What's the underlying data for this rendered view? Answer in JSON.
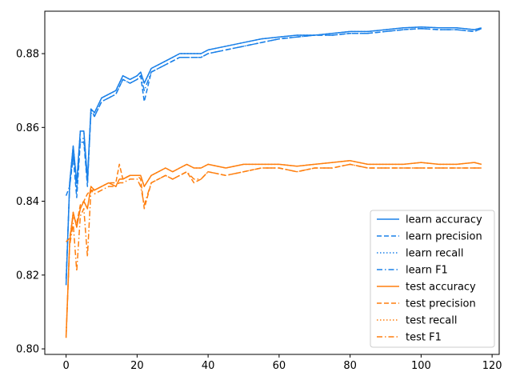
{
  "chart_data": {
    "type": "line",
    "title": "",
    "xlabel": "",
    "ylabel": "",
    "xlim": [
      -6,
      122
    ],
    "ylim": [
      0.7985,
      0.8915
    ],
    "xticks": [
      0,
      20,
      40,
      60,
      80,
      100,
      120
    ],
    "xtick_labels": [
      "0",
      "20",
      "40",
      "60",
      "80",
      "100",
      "120"
    ],
    "yticks": [
      0.8,
      0.82,
      0.84,
      0.86,
      0.88
    ],
    "ytick_labels": [
      "0.80",
      "0.82",
      "0.84",
      "0.86",
      "0.88"
    ],
    "legend_position": "lower-right",
    "colors": {
      "learn": "#1f77b4",
      "test": "#ff7f0e",
      "learn_render": "#1a80e8",
      "test_render": "#ff7f0e"
    },
    "series": [
      {
        "name": "learn accuracy",
        "group": "learn",
        "style": "solid",
        "x": [
          0,
          1,
          2,
          3,
          4,
          5,
          6,
          7,
          8,
          10,
          12,
          14,
          15,
          16,
          18,
          20,
          21,
          22,
          24,
          26,
          28,
          30,
          32,
          34,
          36,
          38,
          40,
          45,
          50,
          55,
          60,
          65,
          70,
          75,
          80,
          85,
          90,
          95,
          100,
          105,
          110,
          115,
          117
        ],
        "y": [
          0.8173,
          0.845,
          0.855,
          0.845,
          0.859,
          0.859,
          0.846,
          0.865,
          0.864,
          0.868,
          0.869,
          0.87,
          0.872,
          0.874,
          0.873,
          0.874,
          0.875,
          0.872,
          0.876,
          0.877,
          0.878,
          0.879,
          0.88,
          0.88,
          0.88,
          0.88,
          0.881,
          0.882,
          0.883,
          0.884,
          0.8845,
          0.885,
          0.885,
          0.8855,
          0.886,
          0.886,
          0.8865,
          0.887,
          0.8872,
          0.887,
          0.887,
          0.8865,
          0.887
        ]
      },
      {
        "name": "learn precision",
        "group": "learn",
        "style": "dashed",
        "x": [
          0,
          1,
          2,
          3,
          4,
          5,
          6,
          7,
          8,
          10,
          12,
          14,
          15,
          16,
          18,
          20,
          21,
          22,
          24,
          26,
          28,
          30,
          32,
          34,
          36,
          38,
          40,
          45,
          50,
          55,
          60,
          65,
          70,
          75,
          80,
          85,
          90,
          95,
          100,
          105,
          110,
          115,
          117
        ],
        "y": [
          0.8415,
          0.844,
          0.852,
          0.841,
          0.856,
          0.856,
          0.844,
          0.865,
          0.863,
          0.867,
          0.868,
          0.869,
          0.871,
          0.873,
          0.872,
          0.873,
          0.874,
          0.867,
          0.875,
          0.876,
          0.877,
          0.878,
          0.879,
          0.879,
          0.879,
          0.879,
          0.88,
          0.881,
          0.882,
          0.883,
          0.884,
          0.8845,
          0.885,
          0.885,
          0.8855,
          0.8855,
          0.886,
          0.8865,
          0.8868,
          0.8865,
          0.8865,
          0.886,
          0.8868
        ]
      },
      {
        "name": "learn recall",
        "group": "learn",
        "style": "dotted",
        "x": [
          0,
          1,
          2,
          3,
          4,
          5,
          6,
          7,
          8,
          10,
          12,
          14,
          15,
          16,
          18,
          20,
          21,
          22,
          24,
          26,
          28,
          30,
          32,
          34,
          36,
          38,
          40,
          45,
          50,
          55,
          60,
          65,
          70,
          75,
          80,
          85,
          90,
          95,
          100,
          105,
          110,
          115,
          117
        ],
        "y": [
          0.8173,
          0.845,
          0.855,
          0.845,
          0.859,
          0.859,
          0.846,
          0.865,
          0.864,
          0.868,
          0.869,
          0.87,
          0.872,
          0.874,
          0.873,
          0.874,
          0.875,
          0.872,
          0.876,
          0.877,
          0.878,
          0.879,
          0.88,
          0.88,
          0.88,
          0.88,
          0.881,
          0.882,
          0.883,
          0.884,
          0.8845,
          0.885,
          0.885,
          0.8855,
          0.886,
          0.886,
          0.8865,
          0.887,
          0.8872,
          0.887,
          0.887,
          0.8865,
          0.887
        ]
      },
      {
        "name": "learn F1",
        "group": "learn",
        "style": "dashdot",
        "x": [
          0,
          1,
          2,
          3,
          4,
          5,
          6,
          7,
          8,
          10,
          12,
          14,
          15,
          16,
          18,
          20,
          21,
          22,
          24,
          26,
          28,
          30,
          32,
          34,
          36,
          38,
          40,
          45,
          50,
          55,
          60,
          65,
          70,
          75,
          80,
          85,
          90,
          95,
          100,
          105,
          110,
          115,
          117
        ],
        "y": [
          0.819,
          0.844,
          0.853,
          0.843,
          0.857,
          0.857,
          0.845,
          0.864,
          0.863,
          0.867,
          0.868,
          0.869,
          0.871,
          0.873,
          0.872,
          0.873,
          0.874,
          0.87,
          0.875,
          0.876,
          0.877,
          0.878,
          0.879,
          0.879,
          0.879,
          0.879,
          0.88,
          0.881,
          0.882,
          0.883,
          0.884,
          0.8845,
          0.885,
          0.885,
          0.8855,
          0.8855,
          0.886,
          0.8865,
          0.8868,
          0.8865,
          0.8865,
          0.886,
          0.8868
        ]
      },
      {
        "name": "test accuracy",
        "group": "test",
        "style": "solid",
        "x": [
          0,
          1,
          2,
          3,
          4,
          5,
          6,
          7,
          8,
          10,
          12,
          14,
          15,
          16,
          18,
          20,
          21,
          22,
          24,
          26,
          28,
          30,
          32,
          34,
          36,
          38,
          40,
          45,
          50,
          55,
          60,
          65,
          70,
          75,
          80,
          85,
          90,
          95,
          100,
          105,
          110,
          115,
          117
        ],
        "y": [
          0.803,
          0.829,
          0.837,
          0.833,
          0.838,
          0.84,
          0.838,
          0.844,
          0.843,
          0.844,
          0.845,
          0.844,
          0.846,
          0.846,
          0.847,
          0.847,
          0.847,
          0.844,
          0.847,
          0.848,
          0.849,
          0.848,
          0.849,
          0.85,
          0.849,
          0.849,
          0.85,
          0.849,
          0.85,
          0.85,
          0.85,
          0.8495,
          0.85,
          0.8505,
          0.851,
          0.85,
          0.85,
          0.85,
          0.8505,
          0.85,
          0.85,
          0.8505,
          0.85
        ]
      },
      {
        "name": "test precision",
        "group": "test",
        "style": "dashed",
        "x": [
          0,
          1,
          2,
          3,
          4,
          5,
          6,
          7,
          8,
          10,
          12,
          14,
          15,
          16,
          18,
          20,
          21,
          22,
          24,
          26,
          28,
          30,
          32,
          34,
          36,
          38,
          40,
          45,
          50,
          55,
          60,
          65,
          70,
          75,
          80,
          85,
          90,
          95,
          100,
          105,
          110,
          115,
          117
        ],
        "y": [
          0.829,
          0.83,
          0.836,
          0.834,
          0.839,
          0.84,
          0.842,
          0.843,
          0.843,
          0.844,
          0.845,
          0.845,
          0.85,
          0.846,
          0.847,
          0.847,
          0.846,
          0.838,
          0.845,
          0.846,
          0.847,
          0.846,
          0.847,
          0.848,
          0.845,
          0.846,
          0.848,
          0.847,
          0.848,
          0.849,
          0.849,
          0.848,
          0.849,
          0.849,
          0.85,
          0.849,
          0.849,
          0.849,
          0.849,
          0.849,
          0.849,
          0.849,
          0.849
        ]
      },
      {
        "name": "test recall",
        "group": "test",
        "style": "dotted",
        "x": [
          0,
          1,
          2,
          3,
          4,
          5,
          6,
          7,
          8,
          10,
          12,
          14,
          15,
          16,
          18,
          20,
          21,
          22,
          24,
          26,
          28,
          30,
          32,
          34,
          36,
          38,
          40,
          45,
          50,
          55,
          60,
          65,
          70,
          75,
          80,
          85,
          90,
          95,
          100,
          105,
          110,
          115,
          117
        ],
        "y": [
          0.803,
          0.829,
          0.837,
          0.833,
          0.838,
          0.84,
          0.838,
          0.844,
          0.843,
          0.844,
          0.845,
          0.844,
          0.846,
          0.846,
          0.847,
          0.847,
          0.847,
          0.844,
          0.847,
          0.848,
          0.849,
          0.848,
          0.849,
          0.85,
          0.849,
          0.849,
          0.85,
          0.849,
          0.85,
          0.85,
          0.85,
          0.8495,
          0.85,
          0.8505,
          0.851,
          0.85,
          0.85,
          0.85,
          0.8505,
          0.85,
          0.85,
          0.8505,
          0.85
        ]
      },
      {
        "name": "test F1",
        "group": "test",
        "style": "dashdot",
        "x": [
          0,
          1,
          2,
          3,
          4,
          5,
          6,
          7,
          8,
          10,
          12,
          14,
          15,
          16,
          18,
          20,
          21,
          22,
          24,
          26,
          28,
          30,
          32,
          34,
          36,
          38,
          40,
          45,
          50,
          55,
          60,
          65,
          70,
          75,
          80,
          85,
          90,
          95,
          100,
          105,
          110,
          115,
          117
        ],
        "y": [
          0.8035,
          0.828,
          0.834,
          0.821,
          0.836,
          0.838,
          0.825,
          0.843,
          0.842,
          0.843,
          0.844,
          0.844,
          0.845,
          0.845,
          0.846,
          0.846,
          0.844,
          0.839,
          0.845,
          0.846,
          0.847,
          0.846,
          0.847,
          0.848,
          0.846,
          0.846,
          0.848,
          0.847,
          0.848,
          0.849,
          0.849,
          0.848,
          0.849,
          0.849,
          0.85,
          0.849,
          0.849,
          0.849,
          0.849,
          0.849,
          0.849,
          0.849,
          0.849
        ]
      }
    ]
  }
}
